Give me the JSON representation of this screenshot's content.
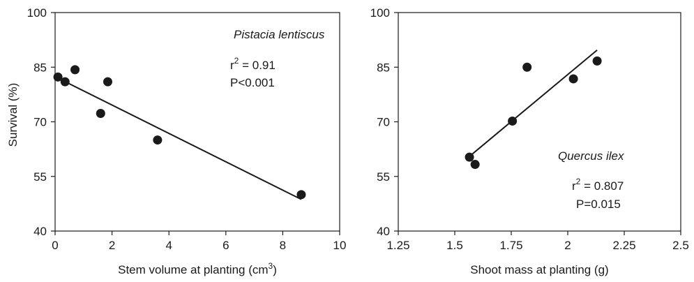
{
  "chart_data": [
    {
      "type": "scatter",
      "title": "",
      "xlabel": "Stem volume at planting (cm",
      "xlabel_superscript": "3",
      "xlabel_suffix": ")",
      "ylabel": "Survival (%)",
      "xlim": [
        0,
        10
      ],
      "ylim": [
        40,
        100
      ],
      "xticks": [
        "0",
        "2",
        "4",
        "6",
        "8",
        "10"
      ],
      "yticks": [
        "40",
        "55",
        "70",
        "85",
        "100"
      ],
      "grid": false,
      "species": "Pistacia lentiscus",
      "r2_prefix": "r",
      "r2_sup": "2",
      "r2_value": " = 0.91",
      "p_text": "P<0.001",
      "points": [
        {
          "x": 0.1,
          "y": 82.3
        },
        {
          "x": 0.35,
          "y": 81.0
        },
        {
          "x": 0.7,
          "y": 84.3
        },
        {
          "x": 1.6,
          "y": 72.3
        },
        {
          "x": 1.85,
          "y": 81.0
        },
        {
          "x": 3.6,
          "y": 65.0
        },
        {
          "x": 8.65,
          "y": 50.0
        }
      ],
      "trendline": [
        {
          "x": 0.1,
          "y": 82.0
        },
        {
          "x": 8.65,
          "y": 48.7
        }
      ]
    },
    {
      "type": "scatter",
      "title": "",
      "xlabel": "Shoot mass at planting (g)",
      "ylabel": "",
      "xlim": [
        1.25,
        2.5
      ],
      "ylim": [
        40,
        100
      ],
      "xticks": [
        "1.25",
        "1.5",
        "1.75",
        "2",
        "2.25",
        "2.5"
      ],
      "yticks": [
        "40",
        "55",
        "70",
        "85",
        "100"
      ],
      "grid": false,
      "species": "Quercus ilex",
      "r2_prefix": "r",
      "r2_sup": "2",
      "r2_value": " = 0.807",
      "p_text": "P=0.015",
      "points": [
        {
          "x": 1.565,
          "y": 60.3
        },
        {
          "x": 1.59,
          "y": 58.3
        },
        {
          "x": 1.755,
          "y": 70.2
        },
        {
          "x": 1.82,
          "y": 85.0
        },
        {
          "x": 2.025,
          "y": 81.8
        },
        {
          "x": 2.13,
          "y": 86.7
        }
      ],
      "trendline": [
        {
          "x": 1.565,
          "y": 60.5
        },
        {
          "x": 2.13,
          "y": 89.7
        }
      ]
    }
  ]
}
